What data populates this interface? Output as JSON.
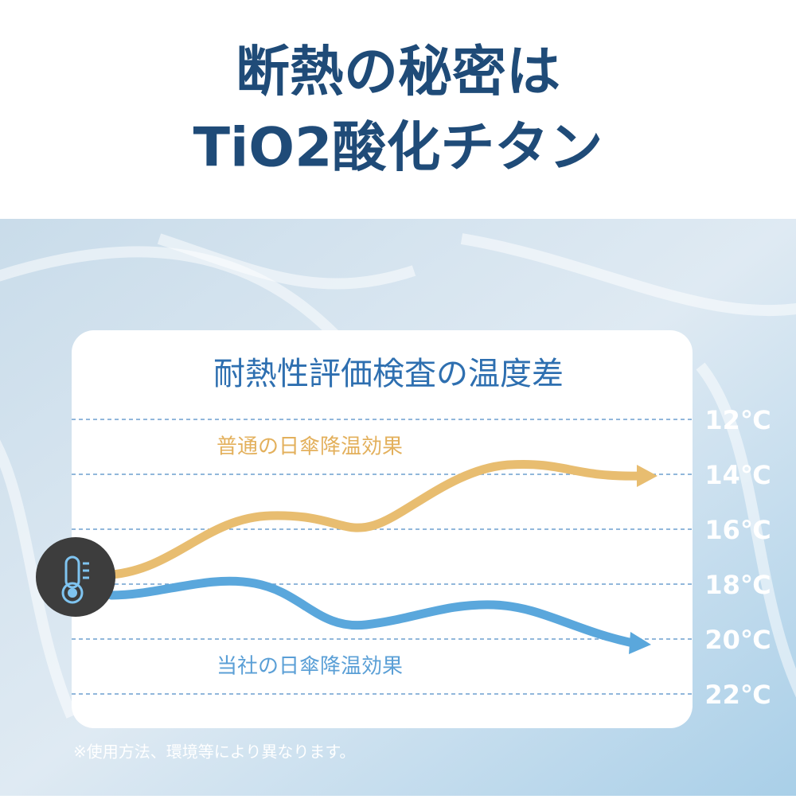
{
  "header": {
    "title_lines": [
      "断熱の秘密は",
      "TiO2酸化チタン"
    ]
  },
  "panel": {
    "title": "耐熱性評価検査の温度差",
    "temperature_labels": [
      "12℃",
      "14℃",
      "16℃",
      "18℃",
      "20℃",
      "22℃"
    ],
    "upper_label": "普通の日傘降温効果",
    "lower_label": "当社の日傘降温効果"
  },
  "footnote": "※使用方法、環境等により異なります。"
}
